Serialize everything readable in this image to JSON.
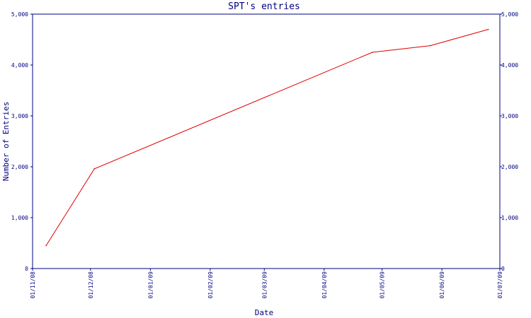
{
  "chart_data": {
    "type": "line",
    "title": "SPT's entries",
    "xlabel": "Date",
    "ylabel": "Number of Entries",
    "x_tick_labels": [
      "01/11/08",
      "01/12/08",
      "01/01/09",
      "01/02/09",
      "01/03/09",
      "01/04/09",
      "01/05/09",
      "01/06/09",
      "01/07/09"
    ],
    "y_tick_labels": [
      "0",
      "1,000",
      "2,000",
      "3,000",
      "4,000",
      "5,000"
    ],
    "y_ticks": [
      0,
      1000,
      2000,
      3000,
      4000,
      5000
    ],
    "ylim": [
      0,
      5000
    ],
    "grid": false,
    "series": [
      {
        "x": [
          "2008-11-08",
          "2008-12-03",
          "2009-04-26",
          "2009-05-26",
          "2009-06-25"
        ],
        "y": [
          450,
          1960,
          4250,
          4380,
          4700
        ]
      }
    ],
    "colors": {
      "axes": "#000080",
      "line": "#e00000",
      "text": "#000080"
    }
  }
}
